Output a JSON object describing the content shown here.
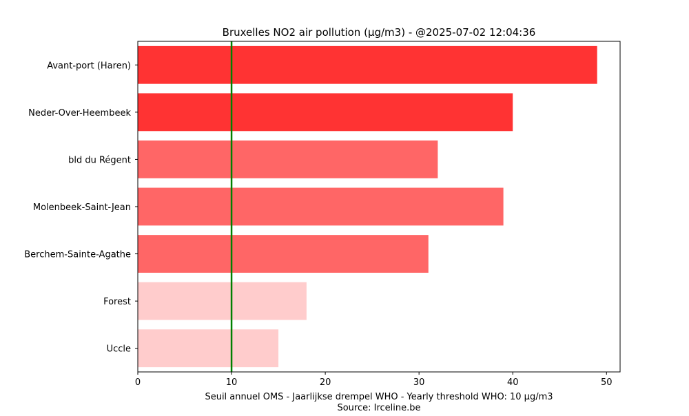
{
  "chart_data": {
    "type": "bar",
    "orientation": "horizontal",
    "title": "Bruxelles NO2 air pollution (µg/m3) - @2025-07-02 12:04:36",
    "categories": [
      "Avant-port (Haren)",
      "Neder-Over-Heembeek",
      "bld du Régent",
      "Molenbeek-Saint-Jean",
      "Berchem-Sainte-Agathe",
      "Forest",
      "Uccle"
    ],
    "values": [
      49,
      40,
      32,
      39,
      31,
      18,
      15
    ],
    "bar_colors": [
      "#ff3333",
      "#ff3333",
      "#ff6666",
      "#ff6666",
      "#ff6666",
      "#ffcccc",
      "#ffcccc"
    ],
    "xlabel": "Seuil annuel OMS - Jaarlijkse drempel WHO - Yearly threshold WHO: 10 µg/m3",
    "source": "Source: Irceline.be",
    "xlim": [
      0,
      51.45
    ],
    "xticks": [
      0,
      10,
      20,
      30,
      40,
      50
    ],
    "threshold": {
      "value": 10,
      "color": "#008000"
    },
    "grid": false,
    "legend": "none"
  }
}
